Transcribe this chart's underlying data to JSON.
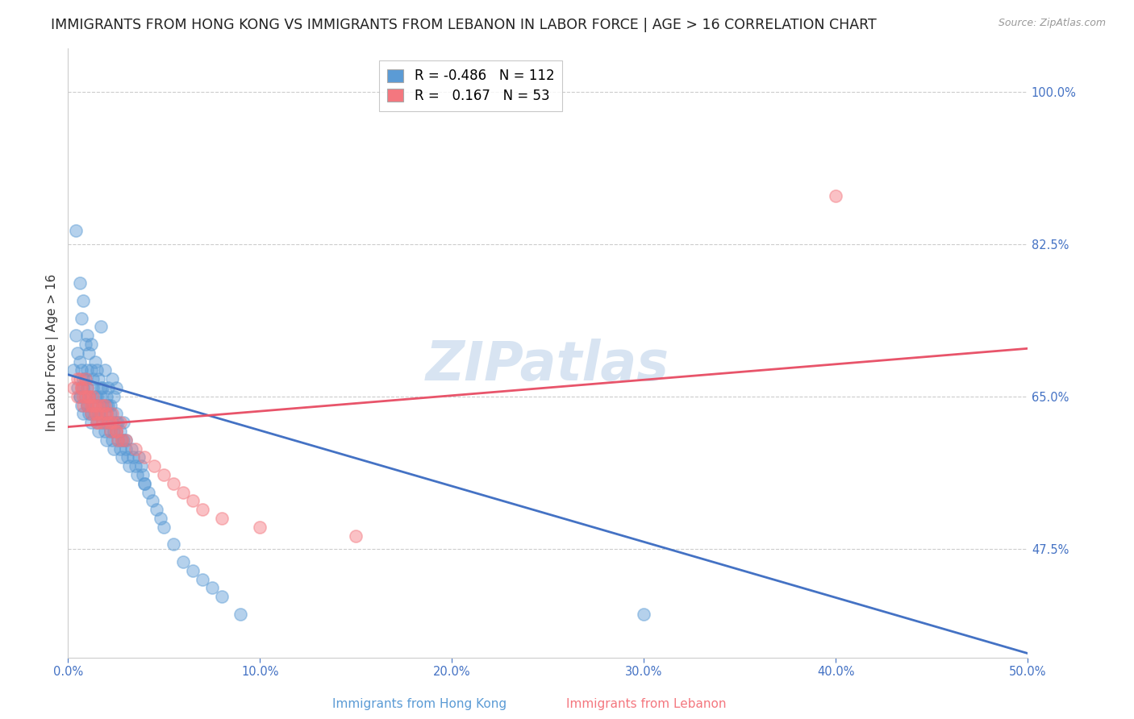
{
  "title": "IMMIGRANTS FROM HONG KONG VS IMMIGRANTS FROM LEBANON IN LABOR FORCE | AGE > 16 CORRELATION CHART",
  "source": "Source: ZipAtlas.com",
  "ylabel": "In Labor Force | Age > 16",
  "xlim": [
    0.0,
    0.5
  ],
  "ylim": [
    0.35,
    1.05
  ],
  "yticks": [
    0.475,
    0.65,
    0.825,
    1.0
  ],
  "ytick_labels": [
    "47.5%",
    "65.0%",
    "82.5%",
    "100.0%"
  ],
  "xticks": [
    0.0,
    0.1,
    0.2,
    0.3,
    0.4,
    0.5
  ],
  "xtick_labels": [
    "0.0%",
    "10.0%",
    "20.0%",
    "30.0%",
    "40.0%",
    "50.0%"
  ],
  "watermark": "ZIPatlas",
  "hk_color": "#5b9bd5",
  "lb_color": "#f4777f",
  "hk_line_color": "#4472c4",
  "lb_line_color": "#e8546a",
  "hk_scatter_x": [
    0.003,
    0.004,
    0.005,
    0.006,
    0.007,
    0.008,
    0.009,
    0.01,
    0.01,
    0.011,
    0.012,
    0.013,
    0.014,
    0.015,
    0.016,
    0.017,
    0.018,
    0.019,
    0.02,
    0.021,
    0.022,
    0.023,
    0.024,
    0.025,
    0.006,
    0.007,
    0.008,
    0.009,
    0.01,
    0.011,
    0.012,
    0.013,
    0.014,
    0.015,
    0.016,
    0.017,
    0.018,
    0.019,
    0.02,
    0.021,
    0.022,
    0.023,
    0.024,
    0.025,
    0.026,
    0.027,
    0.028,
    0.029,
    0.005,
    0.006,
    0.007,
    0.008,
    0.009,
    0.01,
    0.011,
    0.012,
    0.013,
    0.014,
    0.015,
    0.016,
    0.017,
    0.018,
    0.019,
    0.02,
    0.021,
    0.022,
    0.023,
    0.024,
    0.025,
    0.026,
    0.027,
    0.028,
    0.029,
    0.03,
    0.031,
    0.032,
    0.033,
    0.034,
    0.035,
    0.036,
    0.037,
    0.038,
    0.039,
    0.04,
    0.042,
    0.044,
    0.046,
    0.048,
    0.05,
    0.055,
    0.06,
    0.065,
    0.07,
    0.075,
    0.08,
    0.09,
    0.004,
    0.006,
    0.008,
    0.01,
    0.012,
    0.015,
    0.017,
    0.02,
    0.025,
    0.03,
    0.04,
    0.3
  ],
  "hk_scatter_y": [
    0.68,
    0.72,
    0.7,
    0.69,
    0.74,
    0.67,
    0.71,
    0.68,
    0.66,
    0.7,
    0.68,
    0.67,
    0.69,
    0.65,
    0.67,
    0.73,
    0.66,
    0.68,
    0.65,
    0.66,
    0.64,
    0.67,
    0.65,
    0.66,
    0.65,
    0.68,
    0.66,
    0.67,
    0.64,
    0.65,
    0.63,
    0.66,
    0.65,
    0.64,
    0.63,
    0.65,
    0.64,
    0.63,
    0.62,
    0.64,
    0.63,
    0.62,
    0.61,
    0.63,
    0.62,
    0.61,
    0.6,
    0.62,
    0.66,
    0.65,
    0.64,
    0.63,
    0.65,
    0.64,
    0.63,
    0.62,
    0.64,
    0.63,
    0.62,
    0.61,
    0.63,
    0.62,
    0.61,
    0.6,
    0.62,
    0.61,
    0.6,
    0.59,
    0.61,
    0.6,
    0.59,
    0.58,
    0.6,
    0.59,
    0.58,
    0.57,
    0.59,
    0.58,
    0.57,
    0.56,
    0.58,
    0.57,
    0.56,
    0.55,
    0.54,
    0.53,
    0.52,
    0.51,
    0.5,
    0.48,
    0.46,
    0.45,
    0.44,
    0.43,
    0.42,
    0.4,
    0.84,
    0.78,
    0.76,
    0.72,
    0.71,
    0.68,
    0.66,
    0.64,
    0.62,
    0.6,
    0.55,
    0.4
  ],
  "lb_scatter_x": [
    0.003,
    0.005,
    0.006,
    0.007,
    0.008,
    0.009,
    0.01,
    0.011,
    0.012,
    0.013,
    0.014,
    0.015,
    0.016,
    0.017,
    0.018,
    0.019,
    0.02,
    0.021,
    0.022,
    0.023,
    0.024,
    0.025,
    0.026,
    0.027,
    0.005,
    0.007,
    0.008,
    0.009,
    0.01,
    0.011,
    0.012,
    0.013,
    0.014,
    0.015,
    0.016,
    0.018,
    0.02,
    0.022,
    0.025,
    0.028,
    0.03,
    0.035,
    0.04,
    0.045,
    0.05,
    0.055,
    0.06,
    0.065,
    0.07,
    0.08,
    0.1,
    0.15,
    0.4
  ],
  "lb_scatter_y": [
    0.66,
    0.65,
    0.67,
    0.66,
    0.64,
    0.65,
    0.64,
    0.65,
    0.63,
    0.64,
    0.63,
    0.62,
    0.64,
    0.63,
    0.62,
    0.64,
    0.63,
    0.62,
    0.61,
    0.63,
    0.62,
    0.61,
    0.6,
    0.62,
    0.67,
    0.66,
    0.65,
    0.67,
    0.66,
    0.65,
    0.64,
    0.65,
    0.64,
    0.63,
    0.62,
    0.64,
    0.63,
    0.62,
    0.61,
    0.6,
    0.6,
    0.59,
    0.58,
    0.57,
    0.56,
    0.55,
    0.54,
    0.53,
    0.52,
    0.51,
    0.5,
    0.49,
    0.88
  ],
  "hk_line_x": [
    0.0,
    0.5
  ],
  "hk_line_y": [
    0.675,
    0.355
  ],
  "lb_line_x": [
    0.0,
    0.5
  ],
  "lb_line_y": [
    0.615,
    0.705
  ],
  "bg_color": "#ffffff",
  "grid_color": "#cccccc",
  "tick_color": "#4472c4",
  "title_fontsize": 12.5,
  "label_fontsize": 11,
  "tick_fontsize": 10.5
}
